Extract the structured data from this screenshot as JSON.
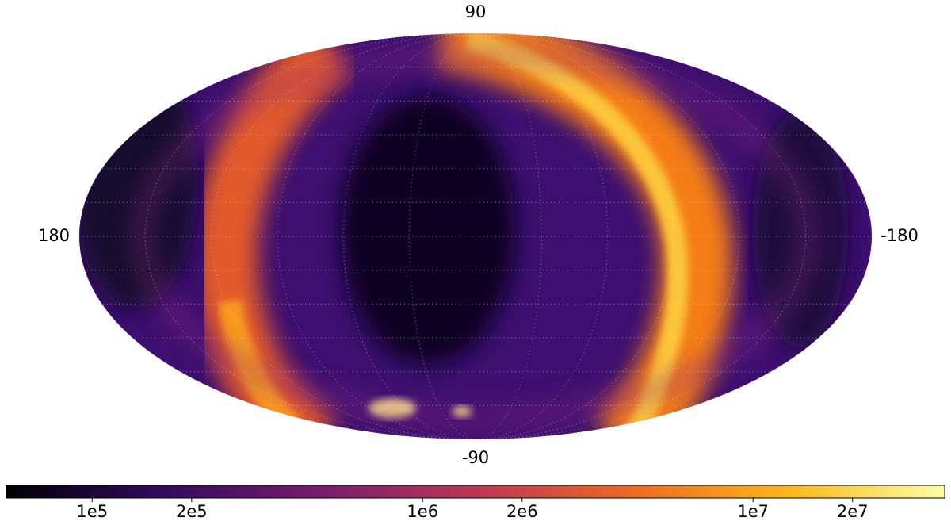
{
  "chart_data": {
    "type": "mollweide",
    "axis_labels": {
      "top": "90",
      "bottom": "-90",
      "left": "180",
      "right": "-180"
    },
    "graticule": true,
    "colorbar": {
      "scale": "log",
      "lim": [
        55000,
        38000000
      ],
      "ticks": [
        {
          "value": 100000,
          "label": "1e5"
        },
        {
          "value": 200000,
          "label": "2e5"
        },
        {
          "value": 1000000,
          "label": "1e6"
        },
        {
          "value": 2000000,
          "label": "2e6"
        },
        {
          "value": 10000000,
          "label": "1e7"
        },
        {
          "value": 20000000,
          "label": "2e7"
        }
      ],
      "colormap": [
        "#000004",
        "#320a5e",
        "#781c6d",
        "#bc3754",
        "#ed6925",
        "#fbb61a",
        "#fcffa4"
      ]
    }
  }
}
